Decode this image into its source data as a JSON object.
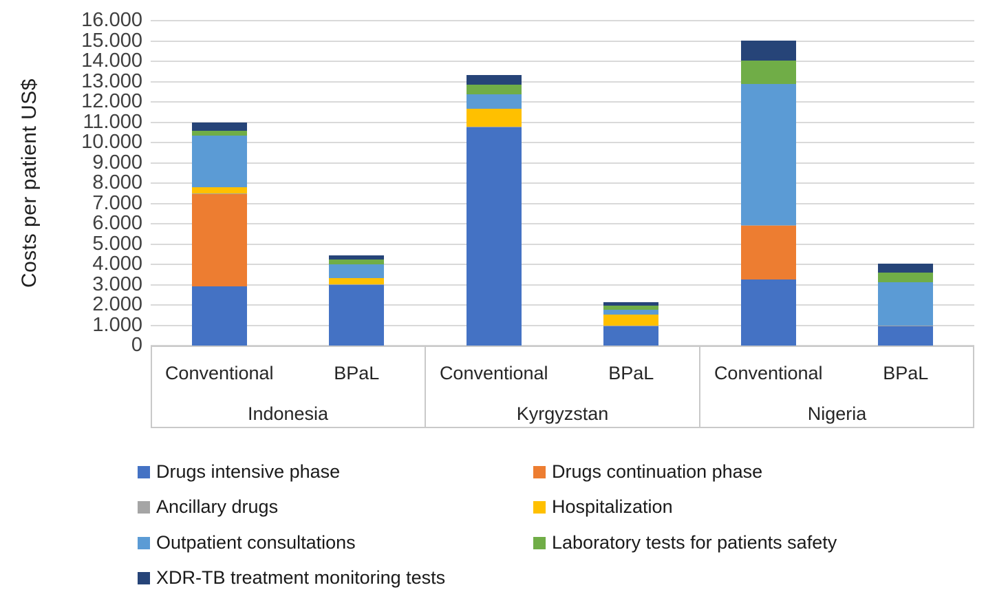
{
  "chart_data": {
    "type": "bar",
    "stacked": true,
    "title": "",
    "xlabel": "",
    "ylabel": "Costs per patient US$",
    "ylim": [
      0,
      16000
    ],
    "ytick_step": 1000,
    "ytick_labels": [
      "0",
      "1.000",
      "2.000",
      "3.000",
      "4.000",
      "5.000",
      "6.000",
      "7.000",
      "8.000",
      "9.000",
      "10.000",
      "11.000",
      "12.000",
      "13.000",
      "14.000",
      "15.000",
      "16.000"
    ],
    "grid": true,
    "legend_position": "bottom",
    "groups": [
      "Indonesia",
      "Kyrgyzstan",
      "Nigeria"
    ],
    "categories": [
      "Conventional",
      "BPaL",
      "Conventional",
      "BPaL",
      "Conventional",
      "BPaL"
    ],
    "series": [
      {
        "name": "Drugs intensive phase",
        "color": "#4472C4",
        "values": [
          2900,
          3000,
          10750,
          950,
          3250,
          950
        ]
      },
      {
        "name": "Drugs continuation phase",
        "color": "#ED7D31",
        "values": [
          4550,
          0,
          0,
          0,
          2650,
          0
        ]
      },
      {
        "name": "Ancillary drugs",
        "color": "#A5A5A5",
        "values": [
          30,
          30,
          30,
          30,
          30,
          30
        ]
      },
      {
        "name": "Hospitalization",
        "color": "#FFC000",
        "values": [
          300,
          280,
          870,
          550,
          0,
          0
        ]
      },
      {
        "name": "Outpatient consultations",
        "color": "#5B9BD5",
        "values": [
          2550,
          700,
          720,
          220,
          6950,
          2150
        ]
      },
      {
        "name": "Laboratory tests for patients safety",
        "color": "#70AD47",
        "values": [
          250,
          230,
          480,
          200,
          1150,
          450
        ]
      },
      {
        "name": "XDR-TB treatment monitoring tests",
        "color": "#264478",
        "values": [
          420,
          190,
          480,
          200,
          1000,
          450
        ]
      }
    ],
    "bar_totals": [
      11000,
      4430,
      13330,
      2150,
      15030,
      4030
    ]
  },
  "colors": {
    "gridline": "#D9D9D9",
    "axis_border": "#C9C9C9",
    "tick_text": "#404040",
    "label_text": "#262626"
  }
}
